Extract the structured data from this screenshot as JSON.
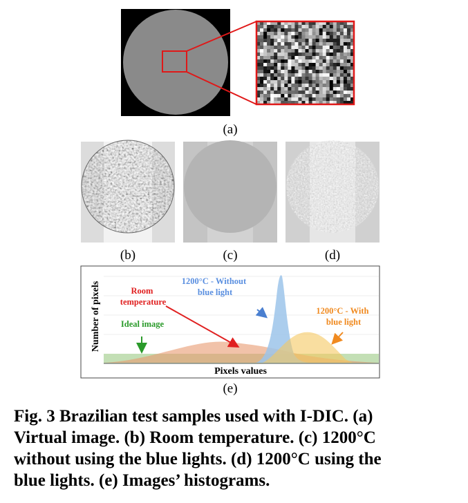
{
  "figure": {
    "panels": {
      "a": "(a)",
      "b": "(b)",
      "c": "(c)",
      "d": "(d)",
      "e": "(e)"
    },
    "histogram": {
      "y_label": "Number of pixels",
      "x_label": "Pixels values",
      "annotations": {
        "without_blue": [
          "1200°C - Without",
          "blue light"
        ],
        "room": [
          "Room",
          "temperature"
        ],
        "ideal": [
          "Ideal image"
        ],
        "with_blue": [
          "1200°C - With",
          "blue light"
        ]
      }
    },
    "caption": [
      "Fig. 3 Brazilian test samples used with I-DIC. (a)",
      "Virtual image. (b) Room temperature. (c) 1200°C",
      "without using the blue lights. (d) 1200°C using the",
      "blue lights. (e) Images’ histograms."
    ]
  }
}
